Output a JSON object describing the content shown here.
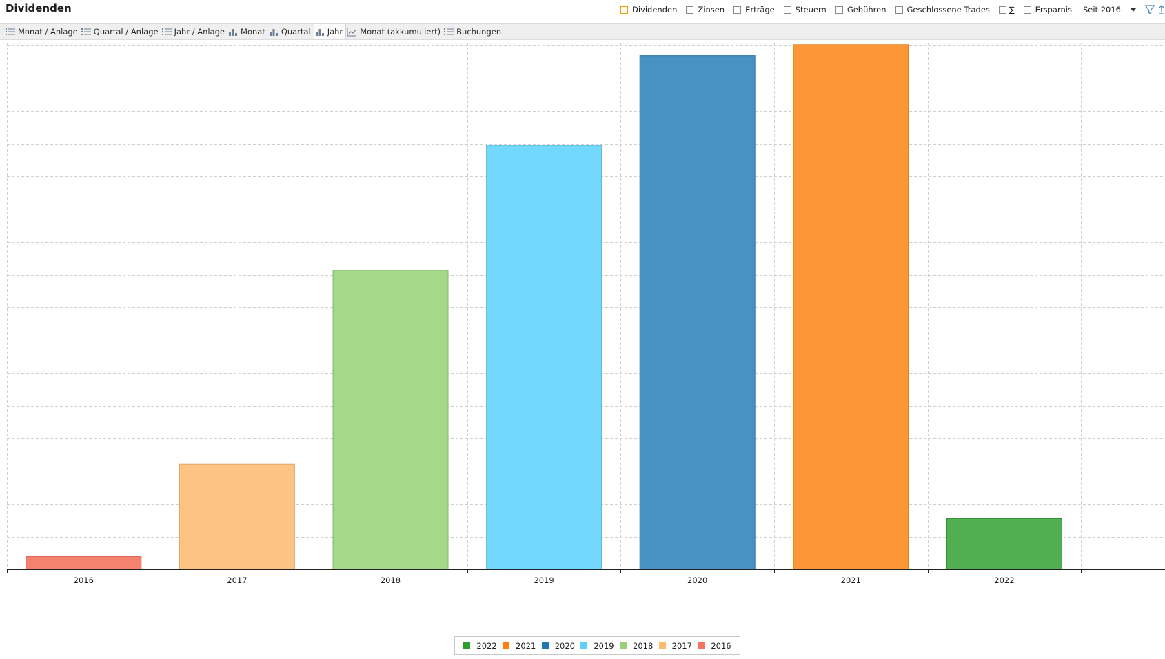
{
  "header": {
    "title": "Dividenden",
    "filters": [
      {
        "label": "Dividenden",
        "checked": true
      },
      {
        "label": "Zinsen",
        "checked": false
      },
      {
        "label": "Erträge",
        "checked": false
      },
      {
        "label": "Steuern",
        "checked": false
      },
      {
        "label": "Gebühren",
        "checked": false
      },
      {
        "label": "Geschlossene Trades",
        "checked": false
      },
      {
        "label": "∑",
        "checked": false
      },
      {
        "label": "Ersparnis",
        "checked": false
      }
    ],
    "period": {
      "selected": "Seit 2016"
    },
    "filter_icon": "funnel-icon"
  },
  "toolbar": {
    "items": [
      {
        "label": "Monat / Anlage",
        "icon": "list-icon"
      },
      {
        "label": "Quartal / Anlage",
        "icon": "list-icon"
      },
      {
        "label": "Jahr / Anlage",
        "icon": "list-icon"
      },
      {
        "label": "Monat",
        "icon": "bar-chart-icon"
      },
      {
        "label": "Quartal",
        "icon": "bar-chart-icon"
      },
      {
        "label": "Jahr",
        "icon": "bar-chart-icon",
        "active": true
      },
      {
        "label": "Monat (akkumuliert)",
        "icon": "line-chart-icon"
      },
      {
        "label": "Buchungen",
        "icon": "list-icon"
      }
    ]
  },
  "chart_data": {
    "type": "bar",
    "categories": [
      "2016",
      "2017",
      "2018",
      "2019",
      "2020",
      "2021",
      "2022"
    ],
    "values": [
      2,
      16.4,
      46.6,
      66,
      80,
      81.7,
      7.9
    ],
    "colors": [
      "#f4826e",
      "#fdc384",
      "#a4d98a",
      "#74d7fc",
      "#4891c4",
      "#fd9636",
      "#52af51"
    ],
    "ylim": [
      0,
      82
    ],
    "y_tick_labels_shown": false,
    "grid": true,
    "legend": {
      "position": "bottom",
      "entries": [
        {
          "label": "2022",
          "color": "#2ca02c"
        },
        {
          "label": "2021",
          "color": "#ff7f0e"
        },
        {
          "label": "2020",
          "color": "#1f77b4"
        },
        {
          "label": "2019",
          "color": "#5fd0fb"
        },
        {
          "label": "2018",
          "color": "#98d17a"
        },
        {
          "label": "2017",
          "color": "#fdbb6f"
        },
        {
          "label": "2016",
          "color": "#f4765f"
        }
      ]
    }
  }
}
